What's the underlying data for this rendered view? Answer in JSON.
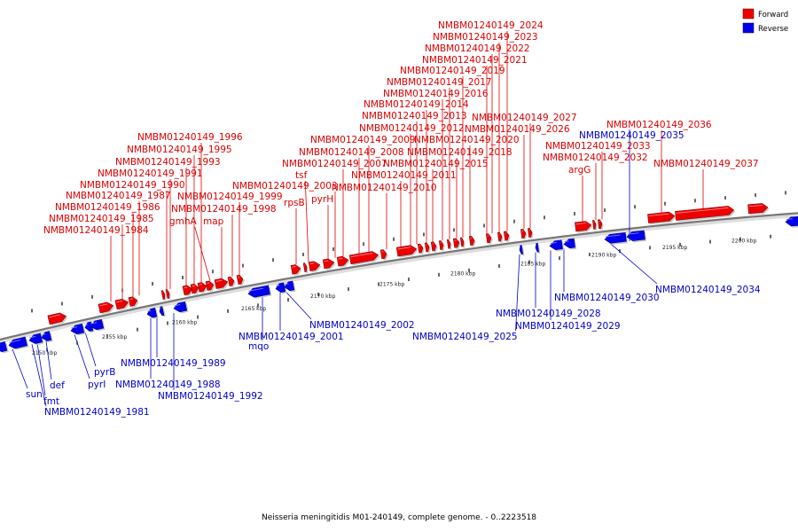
{
  "caption": "Neisseria meningitidis M01-240149, complete genome. - 0..2223518",
  "legend": {
    "forward": {
      "label": "Forward",
      "color": "#ee0000"
    },
    "reverse": {
      "label": "Reverse",
      "color": "#0000ee"
    }
  },
  "ticks": [
    "2150 kbp",
    "2155 kbp",
    "2160 kbp",
    "2165 kbp",
    "2170 kbp",
    "2175 kbp",
    "2180 kbp",
    "2185 kbp",
    "2190 kbp",
    "2195 kbp",
    "2200 kbp"
  ],
  "forward_labels": [
    "NMBM01240149_1984",
    "NMBM01240149_1985",
    "NMBM01240149_1986",
    "NMBM01240149_1987",
    "NMBM01240149_1990",
    "NMBM01240149_1991",
    "NMBM01240149_1993",
    "NMBM01240149_1995",
    "NMBM01240149_1996",
    "gmhA",
    "map",
    "NMBM01240149_1998",
    "NMBM01240149_1999",
    "rpsB",
    "tsf",
    "pyrH",
    "NMBM01240149_2003",
    "NMBM01240149_2007",
    "NMBM01240149_2008",
    "NMBM01240149_2009",
    "NMBM01240149_2010",
    "NMBM01240149_2011",
    "NMBM01240149_2012",
    "NMBM01240149_2013",
    "NMBM01240149_2014",
    "NMBM01240149_2015",
    "NMBM01240149_2016",
    "NMBM01240149_2017",
    "NMBM01240149_2018",
    "NMBM01240149_2019",
    "NMBM01240149_2020",
    "NMBM01240149_2021",
    "NMBM01240149_2022",
    "NMBM01240149_2023",
    "NMBM01240149_2024",
    "NMBM01240149_2026",
    "NMBM01240149_2027",
    "argG",
    "NMBM01240149_2032",
    "NMBM01240149_2033",
    "NMBM01240149_2036",
    "NMBM01240149_2037"
  ],
  "reverse_labels": [
    "sun",
    "fmt",
    "def",
    "NMBM01240149_1981",
    "pyrI",
    "pyrB",
    "NMBM01240149_1988",
    "NMBM01240149_1989",
    "NMBM01240149_1992",
    "mqo",
    "NMBM01240149_2001",
    "NMBM01240149_2002",
    "NMBM01240149_2025",
    "NMBM01240149_2028",
    "NMBM01240149_2029",
    "NMBM01240149_2030",
    "NMBM01240149_2034",
    "NMBM01240149_2035"
  ]
}
